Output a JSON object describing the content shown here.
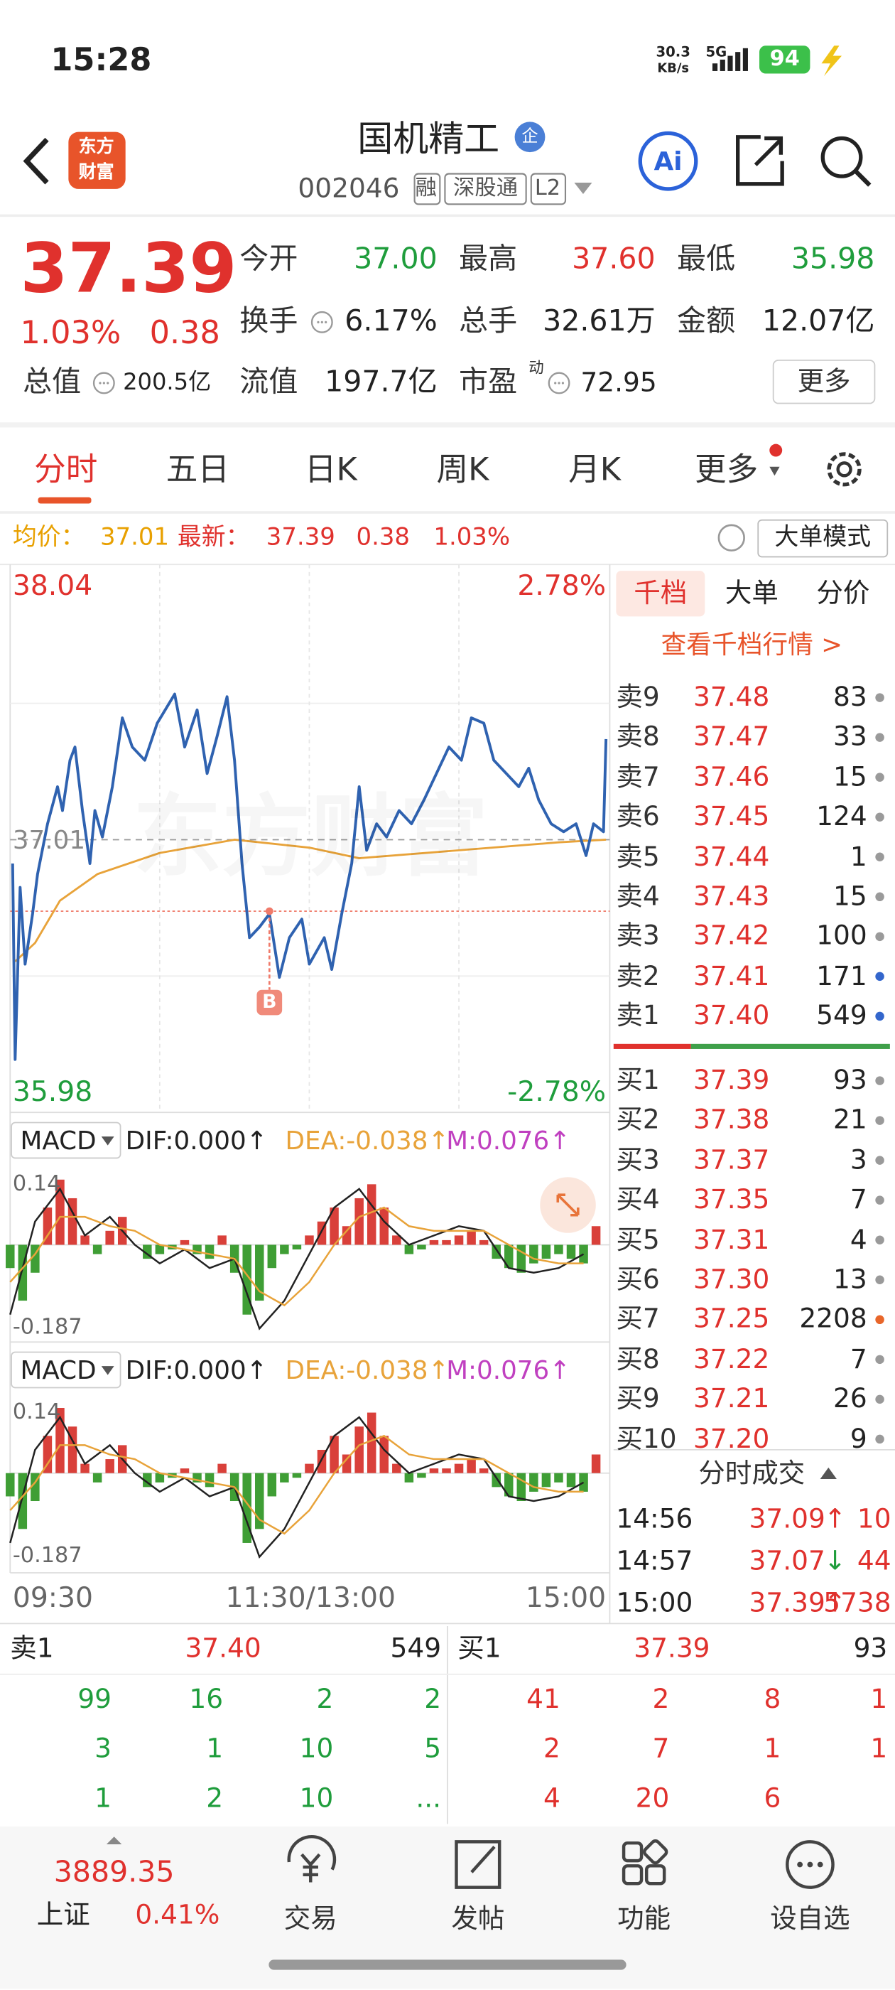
{
  "status": {
    "time": "15:28",
    "speed": "30.3",
    "speed_unit": "KB/s",
    "network": "5G",
    "battery": "94"
  },
  "header": {
    "logo": [
      "东方",
      "财富"
    ],
    "name": "国机精工",
    "badge": "企",
    "code": "002046",
    "tags": [
      "融",
      "深股通",
      "L2"
    ],
    "ai": "Ai"
  },
  "quote": {
    "price": "37.39",
    "change_pct": "1.03%",
    "change": "0.38",
    "more": "更多",
    "fields": [
      {
        "label": "今开",
        "value": "37.00",
        "color": "#1f9d3c"
      },
      {
        "label": "最高",
        "value": "37.60",
        "color": "#e0312d"
      },
      {
        "label": "最低",
        "value": "35.98",
        "color": "#1f9d3c"
      },
      {
        "label": "换手",
        "value": "6.17%",
        "color": "#222222",
        "icon": true
      },
      {
        "label": "总手",
        "value": "32.61万",
        "color": "#222222"
      },
      {
        "label": "金额",
        "value": "12.07亿",
        "color": "#222222"
      },
      {
        "label": "总值",
        "value": "200.5亿",
        "color": "#222222",
        "icon": true
      },
      {
        "label": "流值",
        "value": "197.7亿",
        "color": "#222222"
      },
      {
        "label": "市盈",
        "sup": "动",
        "value": "72.95",
        "color": "#222222",
        "icon": true
      }
    ]
  },
  "tabs": {
    "items": [
      "分时",
      "五日",
      "日K",
      "周K",
      "月K",
      "更多"
    ],
    "active": 0
  },
  "info": {
    "avg_label": "均价：",
    "avg": "37.01",
    "last_label": "最新：",
    "last": "37.39",
    "change": "0.38",
    "change_pct": "1.03%",
    "mode": "大单模式"
  },
  "chart_data": [
    {
      "type": "line",
      "ylim": [
        35.98,
        38.04
      ],
      "xlim": [
        0,
        240
      ],
      "xticks": [
        60,
        120,
        180
      ],
      "prev_close": 37.01,
      "pct_labels": [
        "2.78%",
        "-2.78%"
      ],
      "x_labels": [
        "09:30",
        "11:30/13:00",
        "15:00"
      ],
      "watermark": "东方财富",
      "marker": {
        "label": "B",
        "x": 104,
        "value": 36.74
      },
      "series": [
        {
          "color": "#2f62b0",
          "x": [
            1,
            2,
            4,
            6,
            9,
            11,
            15,
            19,
            21,
            24,
            26,
            29,
            32,
            34,
            37,
            41,
            45,
            49,
            54,
            59,
            66,
            70,
            75,
            79,
            83,
            87,
            90,
            93,
            96,
            100,
            104,
            108,
            112,
            117,
            120,
            126,
            129,
            133,
            137,
            140,
            143,
            147,
            151,
            156,
            161,
            166,
            171,
            176,
            181,
            185,
            190,
            194,
            199,
            204,
            208,
            212,
            217,
            222,
            227,
            231,
            234,
            238,
            239
          ],
          "values": [
            36.92,
            36.18,
            36.83,
            36.54,
            36.73,
            36.88,
            37.07,
            37.21,
            37.12,
            37.31,
            37.36,
            37.12,
            36.92,
            37.12,
            37.02,
            37.21,
            37.47,
            37.36,
            37.31,
            37.45,
            37.56,
            37.36,
            37.5,
            37.26,
            37.4,
            37.55,
            37.31,
            36.92,
            36.64,
            36.68,
            36.73,
            36.49,
            36.64,
            36.71,
            36.54,
            36.64,
            36.52,
            36.73,
            36.92,
            37.21,
            36.97,
            37.07,
            37.02,
            37.12,
            37.07,
            37.16,
            37.26,
            37.36,
            37.31,
            37.47,
            37.45,
            37.31,
            37.26,
            37.21,
            37.28,
            37.16,
            37.07,
            37.04,
            37.07,
            36.95,
            37.07,
            37.04,
            37.39
          ]
        },
        {
          "color": "#e8a33a",
          "x": [
            2,
            10,
            20,
            35,
            60,
            90,
            120,
            140,
            180,
            220,
            239
          ],
          "values": [
            36.55,
            36.62,
            36.78,
            36.88,
            36.96,
            37.01,
            36.98,
            36.94,
            36.97,
            37.0,
            37.01
          ]
        }
      ]
    },
    {
      "type": "bar",
      "title": "MACD",
      "labels": [
        "DIF:0.000↑",
        "DEA:-0.038↑",
        "M:0.076↑"
      ],
      "label_colors": [
        "#222222",
        "#e8a33a",
        "#c040c0"
      ],
      "ylim": [
        -0.187,
        0.14
      ],
      "yticks": [
        -0.187,
        0.14
      ],
      "xlim": [
        0,
        240
      ],
      "up_color": "#d9403a",
      "down_color": "#3f9e35",
      "x": [
        0,
        5,
        10,
        15,
        20,
        25,
        30,
        35,
        40,
        45,
        50,
        55,
        60,
        65,
        70,
        75,
        80,
        85,
        90,
        95,
        100,
        105,
        110,
        115,
        120,
        125,
        130,
        135,
        140,
        145,
        150,
        155,
        160,
        165,
        170,
        175,
        180,
        185,
        190,
        195,
        200,
        205,
        210,
        215,
        220,
        225,
        230,
        235
      ],
      "values": [
        -0.05,
        -0.12,
        -0.06,
        0.08,
        0.14,
        0.1,
        0.02,
        -0.02,
        0.03,
        0.06,
        0.0,
        -0.03,
        -0.02,
        -0.01,
        0.01,
        -0.02,
        -0.03,
        0.02,
        -0.06,
        -0.15,
        -0.12,
        -0.05,
        -0.02,
        -0.01,
        0.02,
        0.05,
        0.08,
        0.04,
        0.1,
        0.13,
        0.08,
        0.02,
        -0.02,
        -0.01,
        0.01,
        0.01,
        0.02,
        0.03,
        0.01,
        -0.03,
        -0.05,
        -0.06,
        -0.04,
        -0.03,
        -0.02,
        -0.03,
        -0.04,
        0.04
      ],
      "series": [
        {
          "color": "#222222",
          "x": [
            0,
            10,
            20,
            30,
            40,
            50,
            60,
            70,
            80,
            90,
            100,
            110,
            120,
            130,
            140,
            150,
            160,
            170,
            180,
            190,
            200,
            210,
            220,
            230
          ],
          "values": [
            -0.15,
            0.05,
            0.12,
            0.02,
            0.06,
            0.0,
            -0.04,
            -0.01,
            -0.05,
            -0.03,
            -0.18,
            -0.12,
            -0.02,
            0.08,
            0.12,
            0.05,
            0.0,
            0.02,
            0.04,
            0.03,
            -0.05,
            -0.06,
            -0.05,
            -0.02
          ]
        },
        {
          "color": "#e8a33a",
          "x": [
            0,
            10,
            20,
            30,
            40,
            50,
            60,
            70,
            80,
            90,
            100,
            110,
            120,
            130,
            140,
            150,
            160,
            170,
            180,
            190,
            200,
            210,
            220,
            230
          ],
          "values": [
            -0.08,
            -0.02,
            0.06,
            0.06,
            0.04,
            0.03,
            0.0,
            -0.01,
            -0.02,
            -0.03,
            -0.1,
            -0.13,
            -0.08,
            0.0,
            0.06,
            0.08,
            0.04,
            0.03,
            0.03,
            0.03,
            0.0,
            -0.03,
            -0.04,
            -0.04
          ]
        }
      ]
    }
  ],
  "depth": {
    "tabs": [
      "千档",
      "大单",
      "分价"
    ],
    "link": "查看千档行情 >",
    "sell": [
      {
        "label": "卖9",
        "price": "37.48",
        "volume": 83,
        "dot": "#9a9a9a"
      },
      {
        "label": "卖8",
        "price": "37.47",
        "volume": 33,
        "dot": "#9a9a9a"
      },
      {
        "label": "卖7",
        "price": "37.46",
        "volume": 15,
        "dot": "#9a9a9a"
      },
      {
        "label": "卖6",
        "price": "37.45",
        "volume": 124,
        "dot": "#9a9a9a"
      },
      {
        "label": "卖5",
        "price": "37.44",
        "volume": 1,
        "dot": "#9a9a9a"
      },
      {
        "label": "卖4",
        "price": "37.43",
        "volume": 15,
        "dot": "#9a9a9a"
      },
      {
        "label": "卖3",
        "price": "37.42",
        "volume": 100,
        "dot": "#9a9a9a"
      },
      {
        "label": "卖2",
        "price": "37.41",
        "volume": 171,
        "dot": "#3366cc"
      },
      {
        "label": "卖1",
        "price": "37.40",
        "volume": 549,
        "dot": "#3366cc"
      }
    ],
    "buy": [
      {
        "label": "买1",
        "price": "37.39",
        "volume": 93,
        "dot": "#9a9a9a"
      },
      {
        "label": "买2",
        "price": "37.38",
        "volume": 21,
        "dot": "#9a9a9a"
      },
      {
        "label": "买3",
        "price": "37.37",
        "volume": 3,
        "dot": "#9a9a9a"
      },
      {
        "label": "买4",
        "price": "37.35",
        "volume": 7,
        "dot": "#9a9a9a"
      },
      {
        "label": "买5",
        "price": "37.31",
        "volume": 4,
        "dot": "#9a9a9a"
      },
      {
        "label": "买6",
        "price": "37.30",
        "volume": 13,
        "dot": "#9a9a9a"
      },
      {
        "label": "买7",
        "price": "37.25",
        "volume": 2208,
        "dot": "#e8662a"
      },
      {
        "label": "买8",
        "price": "37.22",
        "volume": 7,
        "dot": "#9a9a9a"
      },
      {
        "label": "买9",
        "price": "37.21",
        "volume": 26,
        "dot": "#9a9a9a"
      },
      {
        "label": "买10",
        "price": "37.20",
        "volume": 9,
        "dot": "#9a9a9a"
      }
    ],
    "trades_title": "分时成交",
    "trades": [
      {
        "time": "14:56",
        "price": "37.09",
        "dir": "↑",
        "volume": 10
      },
      {
        "time": "14:57",
        "price": "37.07",
        "dir": "↓",
        "volume": 44
      },
      {
        "time": "15:00",
        "price": "37.39",
        "dir": "↑",
        "volume": 5738
      }
    ]
  },
  "book": {
    "sell_label": "卖1",
    "sell_price": "37.40",
    "sell_volume": 549,
    "buy_label": "买1",
    "buy_price": "37.39",
    "buy_volume": 93,
    "sell_orders": [
      [
        99,
        16,
        2,
        2
      ],
      [
        3,
        1,
        10,
        5
      ],
      [
        1,
        2,
        10,
        "..."
      ]
    ],
    "buy_orders": [
      [
        41,
        2,
        8,
        1
      ],
      [
        2,
        7,
        1,
        1
      ],
      [
        4,
        20,
        6
      ]
    ]
  },
  "nav": {
    "index_value": "3889.35",
    "index_name": "上证",
    "index_pct": "0.41%",
    "items": [
      "交易",
      "发帖",
      "功能",
      "设自选"
    ]
  }
}
